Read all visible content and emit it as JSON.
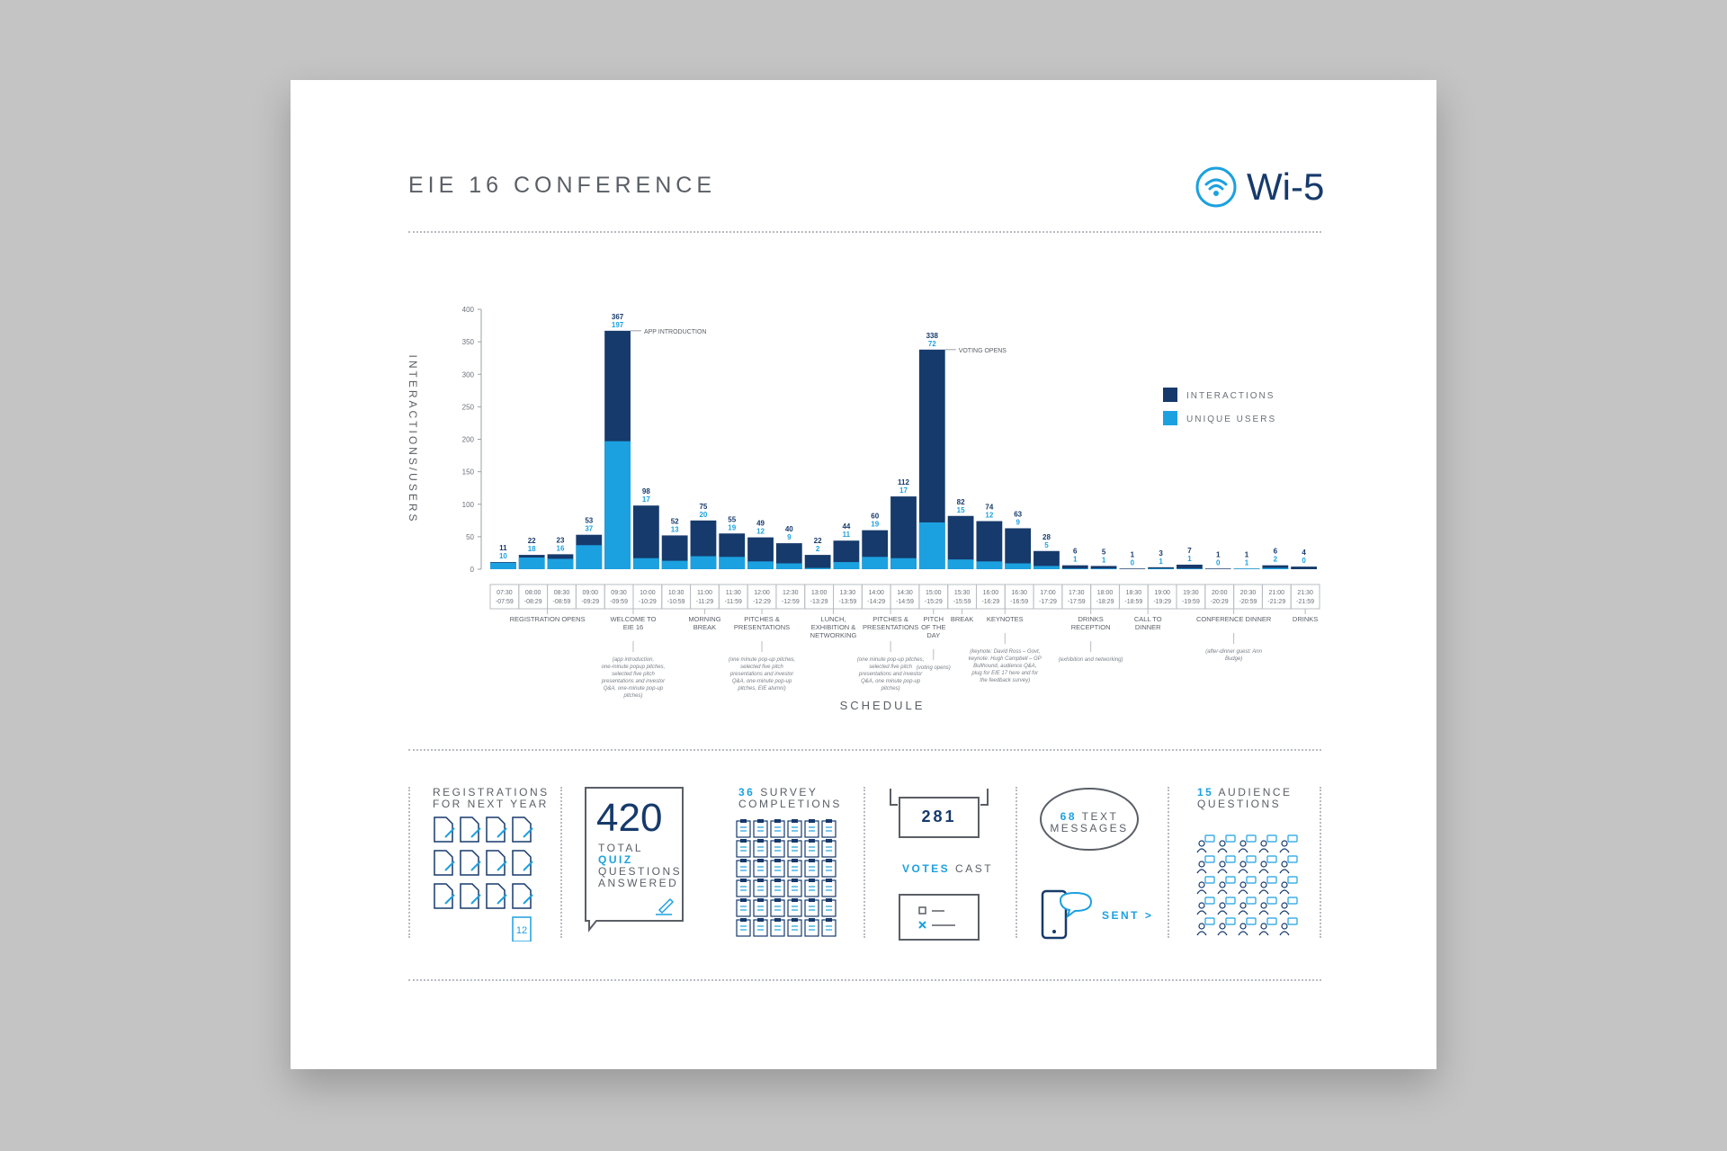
{
  "header": {
    "title": "EIE 16 CONFERENCE",
    "brand": "Wi-5"
  },
  "chart_data": {
    "type": "bar",
    "ylabel": "INTERACTIONS/USERS",
    "xlabel": "SCHEDULE",
    "ylim": [
      0,
      400
    ],
    "yticks": [
      0,
      50,
      100,
      150,
      200,
      250,
      300,
      350,
      400
    ],
    "categories": [
      "07:30 -07:59",
      "08:00 -08:29",
      "08:30 -08:59",
      "09:00 -09:29",
      "09:30 -09:59",
      "10:00 -10:29",
      "10:30 -10:59",
      "11:00 -11:29",
      "11:30 -11:59",
      "12:00 -12:29",
      "12:30 -12:59",
      "13:00 -13:29",
      "13:30 -13:59",
      "14:00 -14:29",
      "14:30 -14:59",
      "15:00 -15:29",
      "15:30 -15:59",
      "16:00 -16:29",
      "16:30 -16:59",
      "17:00 -17:29",
      "17:30 -17:59",
      "18:00 -18:29",
      "18:30 -18:59",
      "19:00 -19:29",
      "19:30 -19:59",
      "20:00 -20:29",
      "20:30 -20:59",
      "21:00 -21:29",
      "21:30 -21:59"
    ],
    "series": [
      {
        "name": "INTERACTIONS",
        "color": "#163a6b",
        "values": [
          11,
          22,
          23,
          53,
          367,
          98,
          52,
          75,
          55,
          49,
          40,
          22,
          44,
          60,
          112,
          338,
          82,
          74,
          63,
          28,
          6,
          5,
          1,
          3,
          7,
          1,
          1,
          6,
          4
        ]
      },
      {
        "name": "UNIQUE USERS",
        "color": "#1ca1e0",
        "values": [
          10,
          18,
          16,
          37,
          197,
          17,
          13,
          20,
          19,
          12,
          9,
          2,
          11,
          19,
          17,
          72,
          15,
          12,
          9,
          5,
          1,
          1,
          0,
          1,
          1,
          0,
          1,
          2,
          0
        ]
      }
    ],
    "legend_position": "right",
    "annotations": [
      {
        "text": "APP INTRODUCTION",
        "index": 4
      },
      {
        "text": "VOTING OPENS",
        "index": 15
      }
    ],
    "schedule": [
      {
        "label": "REGISTRATION OPENS",
        "from": 0,
        "to": 3,
        "note": ""
      },
      {
        "label": "WELCOME TO EIE 16",
        "from": 4,
        "to": 5,
        "note": "(app introduction, one-minute popup pitches, selected five pitch presentations and investor Q&A, one-minute pop-up pitches)"
      },
      {
        "label": "MORNING BREAK",
        "from": 7,
        "to": 7,
        "note": ""
      },
      {
        "label": "PITCHES & PRESENTATIONS",
        "from": 8,
        "to": 10,
        "note": "(one minute pop-up pitches, selected five pitch presentations and investor Q&A, one-minute pop-up pitches, EIE alumni)"
      },
      {
        "label": "LUNCH, EXHIBITION & NETWORKING",
        "from": 11,
        "to": 12,
        "note": ""
      },
      {
        "label": "PITCHES & PRESENTATIONS",
        "from": 13,
        "to": 14,
        "note": "(one minute pop-up pitches, selected five pitch presentations and investor Q&A, one minute pop-up pitches)"
      },
      {
        "label": "PITCH OF THE DAY",
        "from": 15,
        "to": 15,
        "note": "(voting opens)"
      },
      {
        "label": "BREAK",
        "from": 16,
        "to": 16,
        "note": ""
      },
      {
        "label": "KEYNOTES",
        "from": 17,
        "to": 18,
        "note": "(keynote: David Ross – Govt, keynote: Hugh Campbell – GP Bullhound, audience Q&A, plug for EIE 17 here and for the feedback survey)"
      },
      {
        "label": "DRINKS RECEPTION",
        "from": 20,
        "to": 21,
        "note": "(exhibition and networking)"
      },
      {
        "label": "CALL TO DINNER",
        "from": 22,
        "to": 23,
        "note": ""
      },
      {
        "label": "CONFERENCE DINNER",
        "from": 24,
        "to": 27,
        "note": "(after-dinner guest: Ann Budge)"
      },
      {
        "label": "DRINKS",
        "from": 28,
        "to": 28,
        "note": ""
      }
    ]
  },
  "stats": {
    "registrations": {
      "line1": "REGISTRATIONS",
      "line2": "FOR NEXT YEAR",
      "count": "12"
    },
    "quiz": {
      "number": "420",
      "line1": "TOTAL",
      "line2": "QUIZ",
      "line3": "QUESTIONS",
      "line4": "ANSWERED"
    },
    "survey": {
      "number": "36",
      "line1": "SURVEY",
      "line2": "COMPLETIONS"
    },
    "votes": {
      "number": "281",
      "word1": "VOTES",
      "word2": "CAST"
    },
    "texts": {
      "number": "68",
      "line1": "TEXT",
      "line2": "MESSAGES",
      "sent": "SENT >"
    },
    "audience": {
      "number": "15",
      "line1": "AUDIENCE",
      "line2": "QUESTIONS"
    }
  }
}
